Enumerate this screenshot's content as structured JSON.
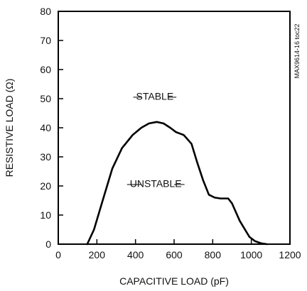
{
  "chart_data": {
    "type": "line",
    "xlabel": "CAPACITIVE LOAD (pF)",
    "ylabel": "RESISTIVE LOAD (Ω)",
    "xlim": [
      0,
      1200
    ],
    "ylim": [
      0,
      80
    ],
    "x_ticks": [
      "0",
      "200",
      "400",
      "600",
      "800",
      "1000",
      "1200"
    ],
    "y_ticks": [
      "0",
      "10",
      "20",
      "30",
      "40",
      "50",
      "60",
      "70",
      "80"
    ],
    "grid": false,
    "series": [
      {
        "x": [
          150,
          185,
          230,
          280,
          330,
          385,
          430,
          470,
          510,
          545,
          580,
          610,
          650,
          690,
          720,
          750,
          780,
          810,
          840,
          880,
          900,
          940,
          990,
          1020,
          1050,
          1080
        ],
        "y": [
          0,
          5,
          15,
          26,
          33,
          37.5,
          40,
          41.5,
          42,
          41.5,
          40,
          38.5,
          37.5,
          34.5,
          28,
          22,
          17,
          16,
          15.7,
          15.7,
          14,
          8,
          2.5,
          1,
          0.3,
          0
        ]
      }
    ],
    "annotations": {
      "stable": "STABLE",
      "unstable": "UNSTABLE",
      "figure_id": "MAX9614-16 toc22"
    },
    "line_color": "#000000"
  }
}
